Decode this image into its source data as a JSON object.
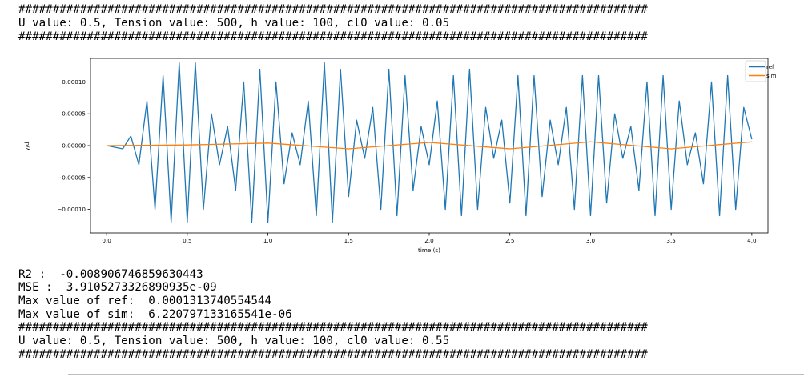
{
  "output": {
    "hash_line": "############################################################################################",
    "params_line_1": "U value: 0.5, Tension value: 500, h value: 100, cl0 value: 0.05",
    "r2_line": "R2 :  -0.008906746859630443",
    "mse_line": "MSE :  3.9105273326890935e-09",
    "max_ref_line": "Max value of ref:  0.0001313740554544",
    "max_sim_line": "Max value of sim:  6.220797133165541e-06",
    "params_line_2": "U value: 0.5, Tension value: 500, h value: 100, cl0 value: 0.55"
  },
  "chart_data": {
    "type": "line",
    "xlabel": "time (s)",
    "ylabel": "y/d",
    "xlim": [
      -0.1,
      4.1
    ],
    "ylim": [
      -0.000137,
      0.000137
    ],
    "xticks": [
      0.0,
      0.5,
      1.0,
      1.5,
      2.0,
      2.5,
      3.0,
      3.5,
      4.0
    ],
    "xtick_labels": [
      "0.0",
      "0.5",
      "1.0",
      "1.5",
      "2.0",
      "2.5",
      "3.0",
      "3.5",
      "4.0"
    ],
    "yticks": [
      0.0001,
      5e-05,
      0.0,
      -5e-05,
      -0.0001
    ],
    "ytick_labels": [
      "0.00010",
      "0.00005",
      "0.00000",
      "−0.00005",
      "−0.00010"
    ],
    "legend_position": "top-right",
    "grid": false,
    "series": [
      {
        "name": "ref",
        "color": "#1f77b4",
        "x": [
          0.0,
          0.1,
          0.15,
          0.2,
          0.25,
          0.3,
          0.35,
          0.4,
          0.45,
          0.5,
          0.55,
          0.6,
          0.65,
          0.7,
          0.75,
          0.8,
          0.85,
          0.9,
          0.95,
          1.0,
          1.05,
          1.1,
          1.15,
          1.2,
          1.25,
          1.3,
          1.35,
          1.4,
          1.45,
          1.5,
          1.55,
          1.6,
          1.65,
          1.7,
          1.75,
          1.8,
          1.85,
          1.9,
          1.95,
          2.0,
          2.05,
          2.1,
          2.15,
          2.2,
          2.25,
          2.3,
          2.35,
          2.4,
          2.45,
          2.5,
          2.55,
          2.6,
          2.65,
          2.7,
          2.75,
          2.8,
          2.85,
          2.9,
          2.95,
          3.0,
          3.05,
          3.1,
          3.15,
          3.2,
          3.25,
          3.3,
          3.35,
          3.4,
          3.45,
          3.5,
          3.55,
          3.6,
          3.65,
          3.7,
          3.75,
          3.8,
          3.85,
          3.9,
          3.95,
          4.0
        ],
        "values": [
          0.0,
          -5e-06,
          1.5e-05,
          -3e-05,
          7e-05,
          -0.0001,
          0.00011,
          -0.00012,
          0.00013,
          -0.00012,
          0.00013,
          -0.0001,
          5e-05,
          -3e-05,
          3e-05,
          -7e-05,
          0.0001,
          -0.00012,
          0.00012,
          -0.00012,
          0.0001,
          -6e-05,
          2e-05,
          -3e-05,
          7e-05,
          -0.00011,
          0.00013,
          -0.00012,
          0.00012,
          -8e-05,
          4e-05,
          -2e-05,
          6e-05,
          -0.0001,
          0.00012,
          -0.00011,
          0.00011,
          -7e-05,
          3e-05,
          -3e-05,
          7e-05,
          -0.0001,
          0.00011,
          -0.00011,
          0.00012,
          -0.0001,
          6e-05,
          -2e-05,
          4e-05,
          -9e-05,
          0.00011,
          -0.00011,
          0.00011,
          -8e-05,
          4e-05,
          -3e-05,
          6e-05,
          -0.0001,
          0.00011,
          -0.00011,
          0.00011,
          -9e-05,
          5e-05,
          -2e-05,
          3e-05,
          -7e-05,
          0.0001,
          -0.00011,
          0.00011,
          -0.0001,
          7e-05,
          -3e-05,
          2e-05,
          -6e-05,
          0.0001,
          -0.00011,
          0.00011,
          -0.0001,
          6e-05,
          1e-05
        ]
      },
      {
        "name": "sim",
        "color": "#ff7f0e",
        "x": [
          0.0,
          0.5,
          1.0,
          1.5,
          2.0,
          2.5,
          3.0,
          3.5,
          4.0
        ],
        "values": [
          0.0,
          1e-06,
          4e-06,
          -5e-06,
          5e-06,
          -5e-06,
          6e-06,
          -5e-06,
          6e-06
        ]
      }
    ]
  }
}
